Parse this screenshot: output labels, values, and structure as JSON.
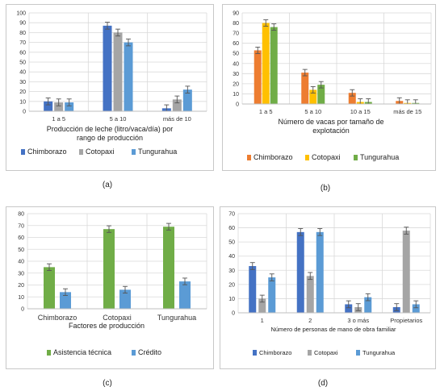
{
  "chart_data": [
    {
      "id": "a",
      "type": "bar",
      "panel_label": "(a)",
      "xlabel": "Producción de leche (litro/vaca/día) por rango de producción",
      "categories": [
        "1 a 5",
        "5 a 10",
        "más de 10"
      ],
      "ylim": [
        0,
        100
      ],
      "yticks": [
        0,
        10,
        20,
        30,
        40,
        50,
        60,
        70,
        80,
        90,
        100
      ],
      "grid": true,
      "error_bars": true,
      "legend_position": "bottom",
      "series": [
        {
          "name": "Chimborazo",
          "color": "#4472c4",
          "values": [
            10,
            87,
            3
          ]
        },
        {
          "name": "Cotopaxi",
          "color": "#a5a5a5",
          "values": [
            9,
            80,
            12
          ]
        },
        {
          "name": "Tungurahua",
          "color": "#5b9bd5",
          "values": [
            9,
            70,
            22
          ]
        }
      ]
    },
    {
      "id": "b",
      "type": "bar",
      "panel_label": "(b)",
      "xlabel": "Número de vacas por tamaño de explotación",
      "categories": [
        "1 a 5",
        "5 a 10",
        "10 a 15",
        "más de 15"
      ],
      "ylim": [
        0,
        90
      ],
      "yticks": [
        0,
        10,
        20,
        30,
        40,
        50,
        60,
        70,
        80,
        90
      ],
      "grid": true,
      "error_bars": true,
      "legend_position": "bottom",
      "series": [
        {
          "name": "Chimborazo",
          "color": "#ed7d31",
          "values": [
            53,
            31,
            11,
            3
          ]
        },
        {
          "name": "Cotopaxi",
          "color": "#ffc000",
          "values": [
            80,
            14,
            2,
            1
          ]
        },
        {
          "name": "Tungurahua",
          "color": "#70ad47",
          "values": [
            76,
            19,
            2,
            1
          ]
        }
      ]
    },
    {
      "id": "c",
      "type": "bar",
      "panel_label": "(c)",
      "xlabel": "Factores de producción",
      "categories": [
        "Chimborazo",
        "Cotopaxi",
        "Tungurahua"
      ],
      "ylim": [
        0,
        80
      ],
      "yticks": [
        0,
        10,
        20,
        30,
        40,
        50,
        60,
        70,
        80
      ],
      "grid": true,
      "error_bars": true,
      "legend_position": "bottom",
      "series": [
        {
          "name": "Asistencia técnica",
          "color": "#70ad47",
          "values": [
            35,
            67,
            69
          ]
        },
        {
          "name": "Crédito",
          "color": "#5b9bd5",
          "values": [
            14,
            16,
            23
          ]
        }
      ]
    },
    {
      "id": "d",
      "type": "bar",
      "panel_label": "(d)",
      "xlabel": "Número de personas de mano de obra familiar",
      "categories": [
        "1",
        "2",
        "3 o más",
        "Propietarios"
      ],
      "ylim": [
        0,
        70
      ],
      "yticks": [
        0,
        10,
        20,
        30,
        40,
        50,
        60,
        70
      ],
      "grid": true,
      "error_bars": true,
      "legend_position": "bottom",
      "series": [
        {
          "name": "Chimborazo",
          "color": "#4472c4",
          "values": [
            33,
            57,
            6,
            4
          ]
        },
        {
          "name": "Cotopaxi",
          "color": "#a5a5a5",
          "values": [
            10,
            26,
            4,
            58
          ]
        },
        {
          "name": "Tungurahua",
          "color": "#5b9bd5",
          "values": [
            25,
            57,
            11,
            6
          ]
        }
      ]
    }
  ]
}
